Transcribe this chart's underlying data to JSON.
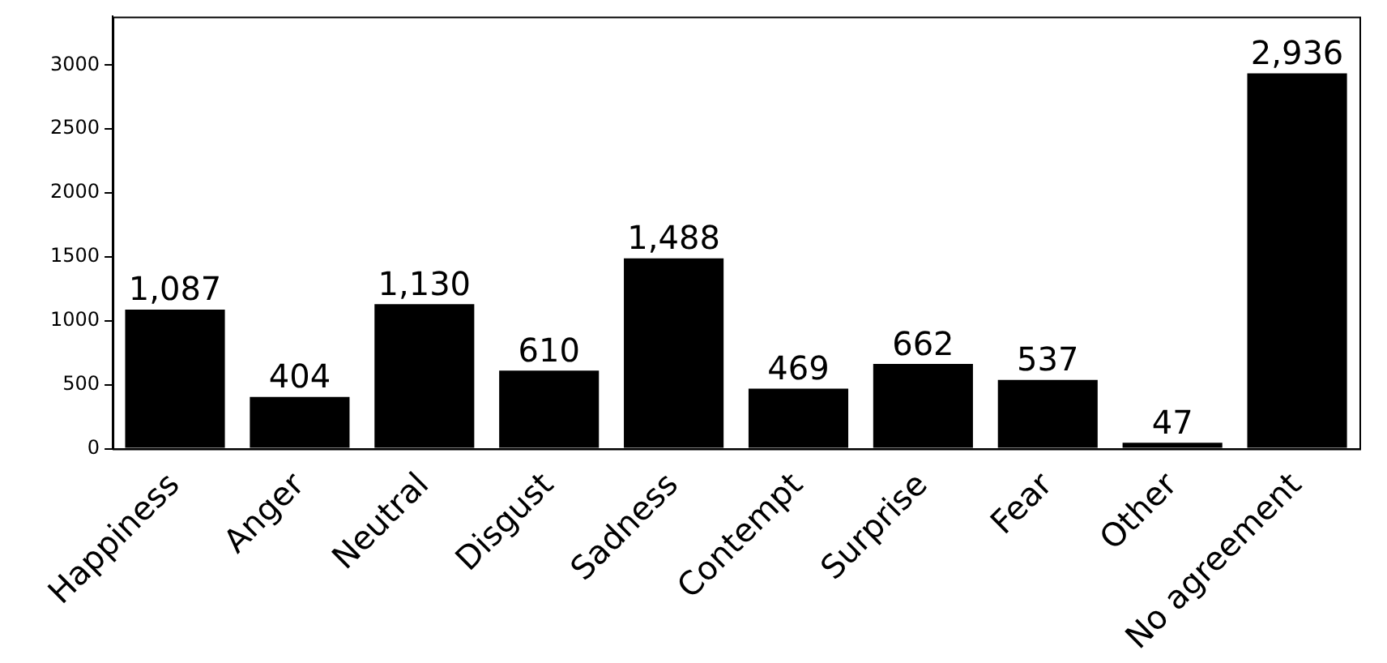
{
  "chart_data": {
    "type": "bar",
    "categories": [
      "Happiness",
      "Anger",
      "Neutral",
      "Disgust",
      "Sadness",
      "Contempt",
      "Surprise",
      "Fear",
      "Other",
      "No agreement"
    ],
    "values": [
      1087,
      404,
      1130,
      610,
      1488,
      469,
      662,
      537,
      47,
      2936
    ],
    "value_labels": [
      "1,087",
      "404",
      "1,130",
      "610",
      "1,488",
      "469",
      "662",
      "537",
      "47",
      "2,936"
    ],
    "color": "#000000",
    "ylim": [
      0,
      3380
    ],
    "yticks": [
      0,
      500,
      1000,
      1500,
      2000,
      2500,
      3000
    ],
    "grid": false,
    "legend": false
  }
}
